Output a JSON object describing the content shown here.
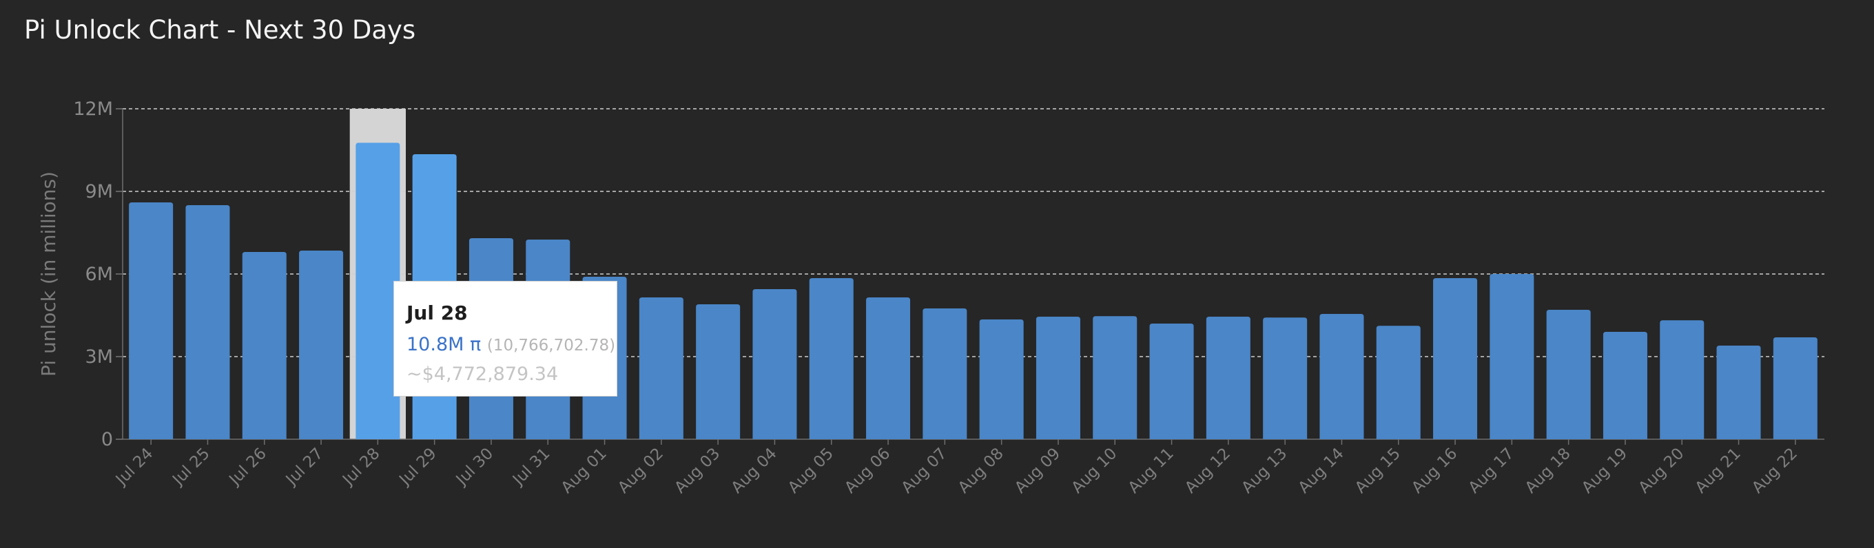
{
  "title": "Pi Unlock Chart - Next 30 Days",
  "colors": {
    "background": "#262626",
    "bar": "#4a86c8",
    "bar_highlight": "#56a0e8",
    "hover_band": "#d4d4d4",
    "gridline": "#cfcfcf"
  },
  "tooltip": {
    "date": "Jul 28",
    "short_value": "10.8M π",
    "exact_value": "(10,766,702.78)",
    "usd_value": "~$4,772,879.34"
  },
  "chart_data": {
    "type": "bar",
    "title": "Pi Unlock Chart - Next 30 Days",
    "xlabel": "",
    "ylabel": "Pi unlock (in millions)",
    "ylim": [
      0,
      12000000
    ],
    "yticks": [
      0,
      3000000,
      6000000,
      9000000,
      12000000
    ],
    "ytick_labels": [
      "0",
      "3M",
      "6M",
      "9M",
      "12M"
    ],
    "grid": "horizontal dashed",
    "highlighted_category": "Jul 28",
    "categories": [
      "Jul 24",
      "Jul 25",
      "Jul 26",
      "Jul 27",
      "Jul 28",
      "Jul 29",
      "Jul 30",
      "Jul 31",
      "Aug 01",
      "Aug 02",
      "Aug 03",
      "Aug 04",
      "Aug 05",
      "Aug 06",
      "Aug 07",
      "Aug 08",
      "Aug 09",
      "Aug 10",
      "Aug 11",
      "Aug 12",
      "Aug 13",
      "Aug 14",
      "Aug 15",
      "Aug 16",
      "Aug 17",
      "Aug 18",
      "Aug 19",
      "Aug 20",
      "Aug 21",
      "Aug 22"
    ],
    "values": [
      8600000,
      8500000,
      6800000,
      6850000,
      10766702.78,
      10350000,
      7300000,
      7250000,
      5900000,
      5150000,
      4900000,
      5450000,
      5850000,
      5150000,
      4750000,
      4350000,
      4450000,
      4470000,
      4200000,
      4450000,
      4420000,
      4550000,
      4120000,
      5850000,
      6000000,
      4700000,
      3900000,
      4320000,
      3400000,
      3700000
    ]
  }
}
